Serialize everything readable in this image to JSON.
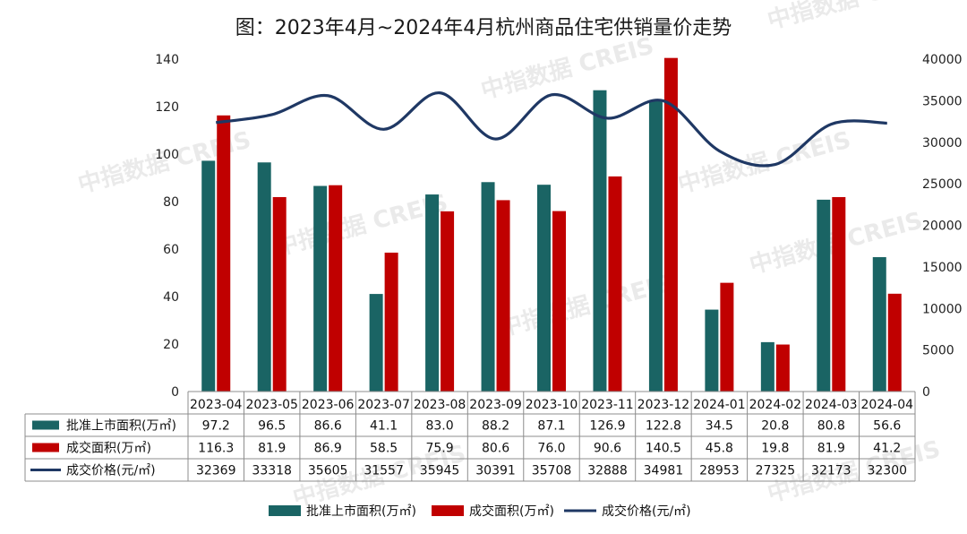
{
  "chart_data": {
    "type": "bar",
    "title": "图：2023年4月~2024年4月杭州商品住宅供销量价走势",
    "categories": [
      "2023-04",
      "2023-05",
      "2023-06",
      "2023-07",
      "2023-08",
      "2023-09",
      "2023-10",
      "2023-11",
      "2023-12",
      "2024-01",
      "2024-02",
      "2024-03",
      "2024-04"
    ],
    "series": [
      {
        "name": "批准上市面积(万㎡)",
        "kind": "bar",
        "axis": "left",
        "color": "#1a6464",
        "values": [
          97.2,
          96.5,
          86.6,
          41.1,
          83.0,
          88.2,
          87.1,
          126.9,
          122.8,
          34.5,
          20.8,
          80.8,
          56.6
        ],
        "labels": [
          "97.2",
          "96.5",
          "86.6",
          "41.1",
          "83.0",
          "88.2",
          "87.1",
          "126.9",
          "122.8",
          "34.5",
          "20.8",
          "80.8",
          "56.6"
        ]
      },
      {
        "name": "成交面积(万㎡)",
        "kind": "bar",
        "axis": "left",
        "color": "#c00000",
        "values": [
          116.3,
          81.9,
          86.9,
          58.5,
          75.9,
          80.6,
          76.0,
          90.6,
          140.5,
          45.8,
          19.8,
          81.9,
          41.2
        ],
        "labels": [
          "116.3",
          "81.9",
          "86.9",
          "58.5",
          "75.9",
          "80.6",
          "76.0",
          "90.6",
          "140.5",
          "45.8",
          "19.8",
          "81.9",
          "41.2"
        ]
      },
      {
        "name": "成交价格(元/㎡)",
        "kind": "line",
        "axis": "right",
        "color": "#1f3864",
        "values": [
          32369,
          33318,
          35605,
          31557,
          35945,
          30391,
          35708,
          32888,
          34981,
          28953,
          27325,
          32173,
          32300
        ],
        "labels": [
          "32369",
          "33318",
          "35605",
          "31557",
          "35945",
          "30391",
          "35708",
          "32888",
          "34981",
          "28953",
          "27325",
          "32173",
          "32300"
        ]
      }
    ],
    "y_left": {
      "min": 0,
      "max": 140,
      "ticks": [
        "0",
        "20",
        "40",
        "60",
        "80",
        "100",
        "120",
        "140"
      ]
    },
    "y_right": {
      "min": 0,
      "max": 40000,
      "ticks": [
        "0",
        "5000",
        "10000",
        "15000",
        "20000",
        "25000",
        "30000",
        "35000",
        "40000"
      ]
    },
    "legend": "bottom",
    "grid": false,
    "watermark": "中指数据 CREIS"
  }
}
